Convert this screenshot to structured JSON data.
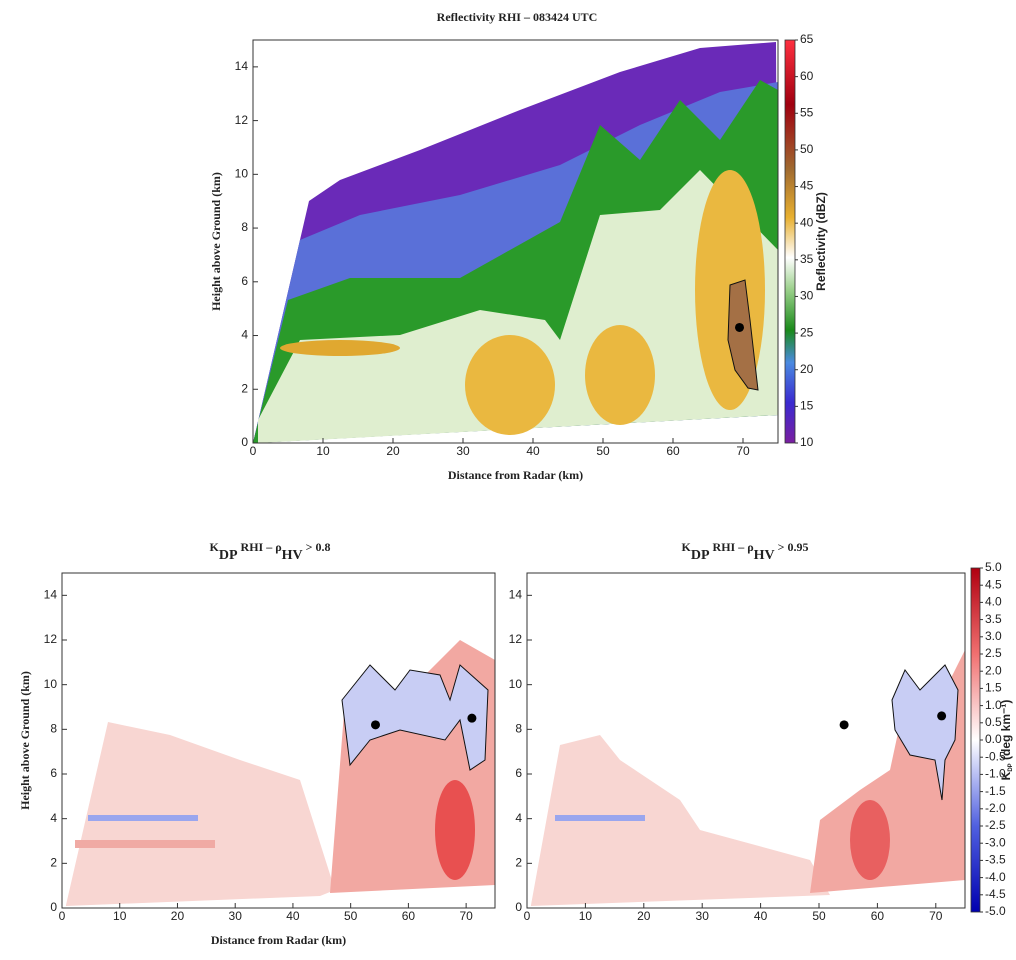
{
  "chart_data": [
    {
      "type": "heatmap",
      "title": [
        "Reflectivity RHI – 083424 UTC"
      ],
      "xlabel": "Distance from Radar (km)",
      "ylabel": "Height above Ground (km)",
      "xlim": [
        0,
        75
      ],
      "ylim": [
        0,
        15
      ],
      "xticks": [
        0,
        10,
        20,
        30,
        40,
        50,
        60,
        70
      ],
      "yticks": [
        0,
        2,
        4,
        6,
        8,
        10,
        12,
        14
      ],
      "colorbar": {
        "label": [
          "Reflectivity (dBZ)"
        ],
        "lim": [
          10,
          65
        ],
        "ticks": [
          10,
          15,
          20,
          25,
          30,
          35,
          40,
          45,
          50,
          55,
          60,
          65
        ]
      },
      "points": {
        "x": [
          69.5
        ],
        "y": [
          4.3
        ]
      }
    },
    {
      "type": "heatmap",
      "title": [
        "K",
        "DP",
        " RHI – ρ",
        "HV",
        " > 0.8"
      ],
      "xlabel": "Distance from Radar (km)",
      "ylabel": "Height above Ground (km)",
      "xlim": [
        0,
        75
      ],
      "ylim": [
        0,
        15
      ],
      "xticks": [
        0,
        10,
        20,
        30,
        40,
        50,
        60,
        70
      ],
      "yticks": [
        0,
        2,
        4,
        6,
        8,
        10,
        12,
        14
      ],
      "points": {
        "x": [
          54.3,
          71
        ],
        "y": [
          8.2,
          8.5
        ]
      }
    },
    {
      "type": "heatmap",
      "title": [
        "K",
        "DP",
        " RHI – ρ",
        "HV",
        " > 0.95"
      ],
      "xlim": [
        0,
        75
      ],
      "ylim": [
        0,
        15
      ],
      "xticks": [
        0,
        10,
        20,
        30,
        40,
        50,
        60,
        70
      ],
      "yticks": [
        0,
        2,
        4,
        6,
        8,
        10,
        12,
        14
      ],
      "colorbar": {
        "label": [
          "K",
          "DP",
          " (deg km⁻¹)"
        ],
        "lim": [
          -5,
          5
        ],
        "ticks": [
          {
            "value": -5,
            "label": "-5.0"
          },
          {
            "value": -4.5,
            "label": "-4.5"
          },
          {
            "value": -4,
            "label": "-4.0"
          },
          {
            "value": -3.5,
            "label": "-3.5"
          },
          {
            "value": -3,
            "label": "-3.0"
          },
          {
            "value": -2.5,
            "label": "-2.5"
          },
          {
            "value": -2,
            "label": "-2.0"
          },
          {
            "value": -1.5,
            "label": "-1.5"
          },
          {
            "value": -1,
            "label": "-1.0"
          },
          {
            "value": -0.5,
            "label": "-0.5"
          },
          {
            "value": 0,
            "label": "0.0"
          },
          {
            "value": 0.5,
            "label": "0.5"
          },
          {
            "value": 1,
            "label": "1.0"
          },
          {
            "value": 1.5,
            "label": "1.5"
          },
          {
            "value": 2,
            "label": "2.0"
          },
          {
            "value": 2.5,
            "label": "2.5"
          },
          {
            "value": 3,
            "label": "3.0"
          },
          {
            "value": 3.5,
            "label": "3.5"
          },
          {
            "value": 4,
            "label": "4.0"
          },
          {
            "value": 4.5,
            "label": "4.5"
          },
          {
            "value": 5,
            "label": "5.0"
          }
        ]
      },
      "points": {
        "x": [
          54.3,
          71
        ],
        "y": [
          8.2,
          8.6
        ]
      }
    }
  ]
}
